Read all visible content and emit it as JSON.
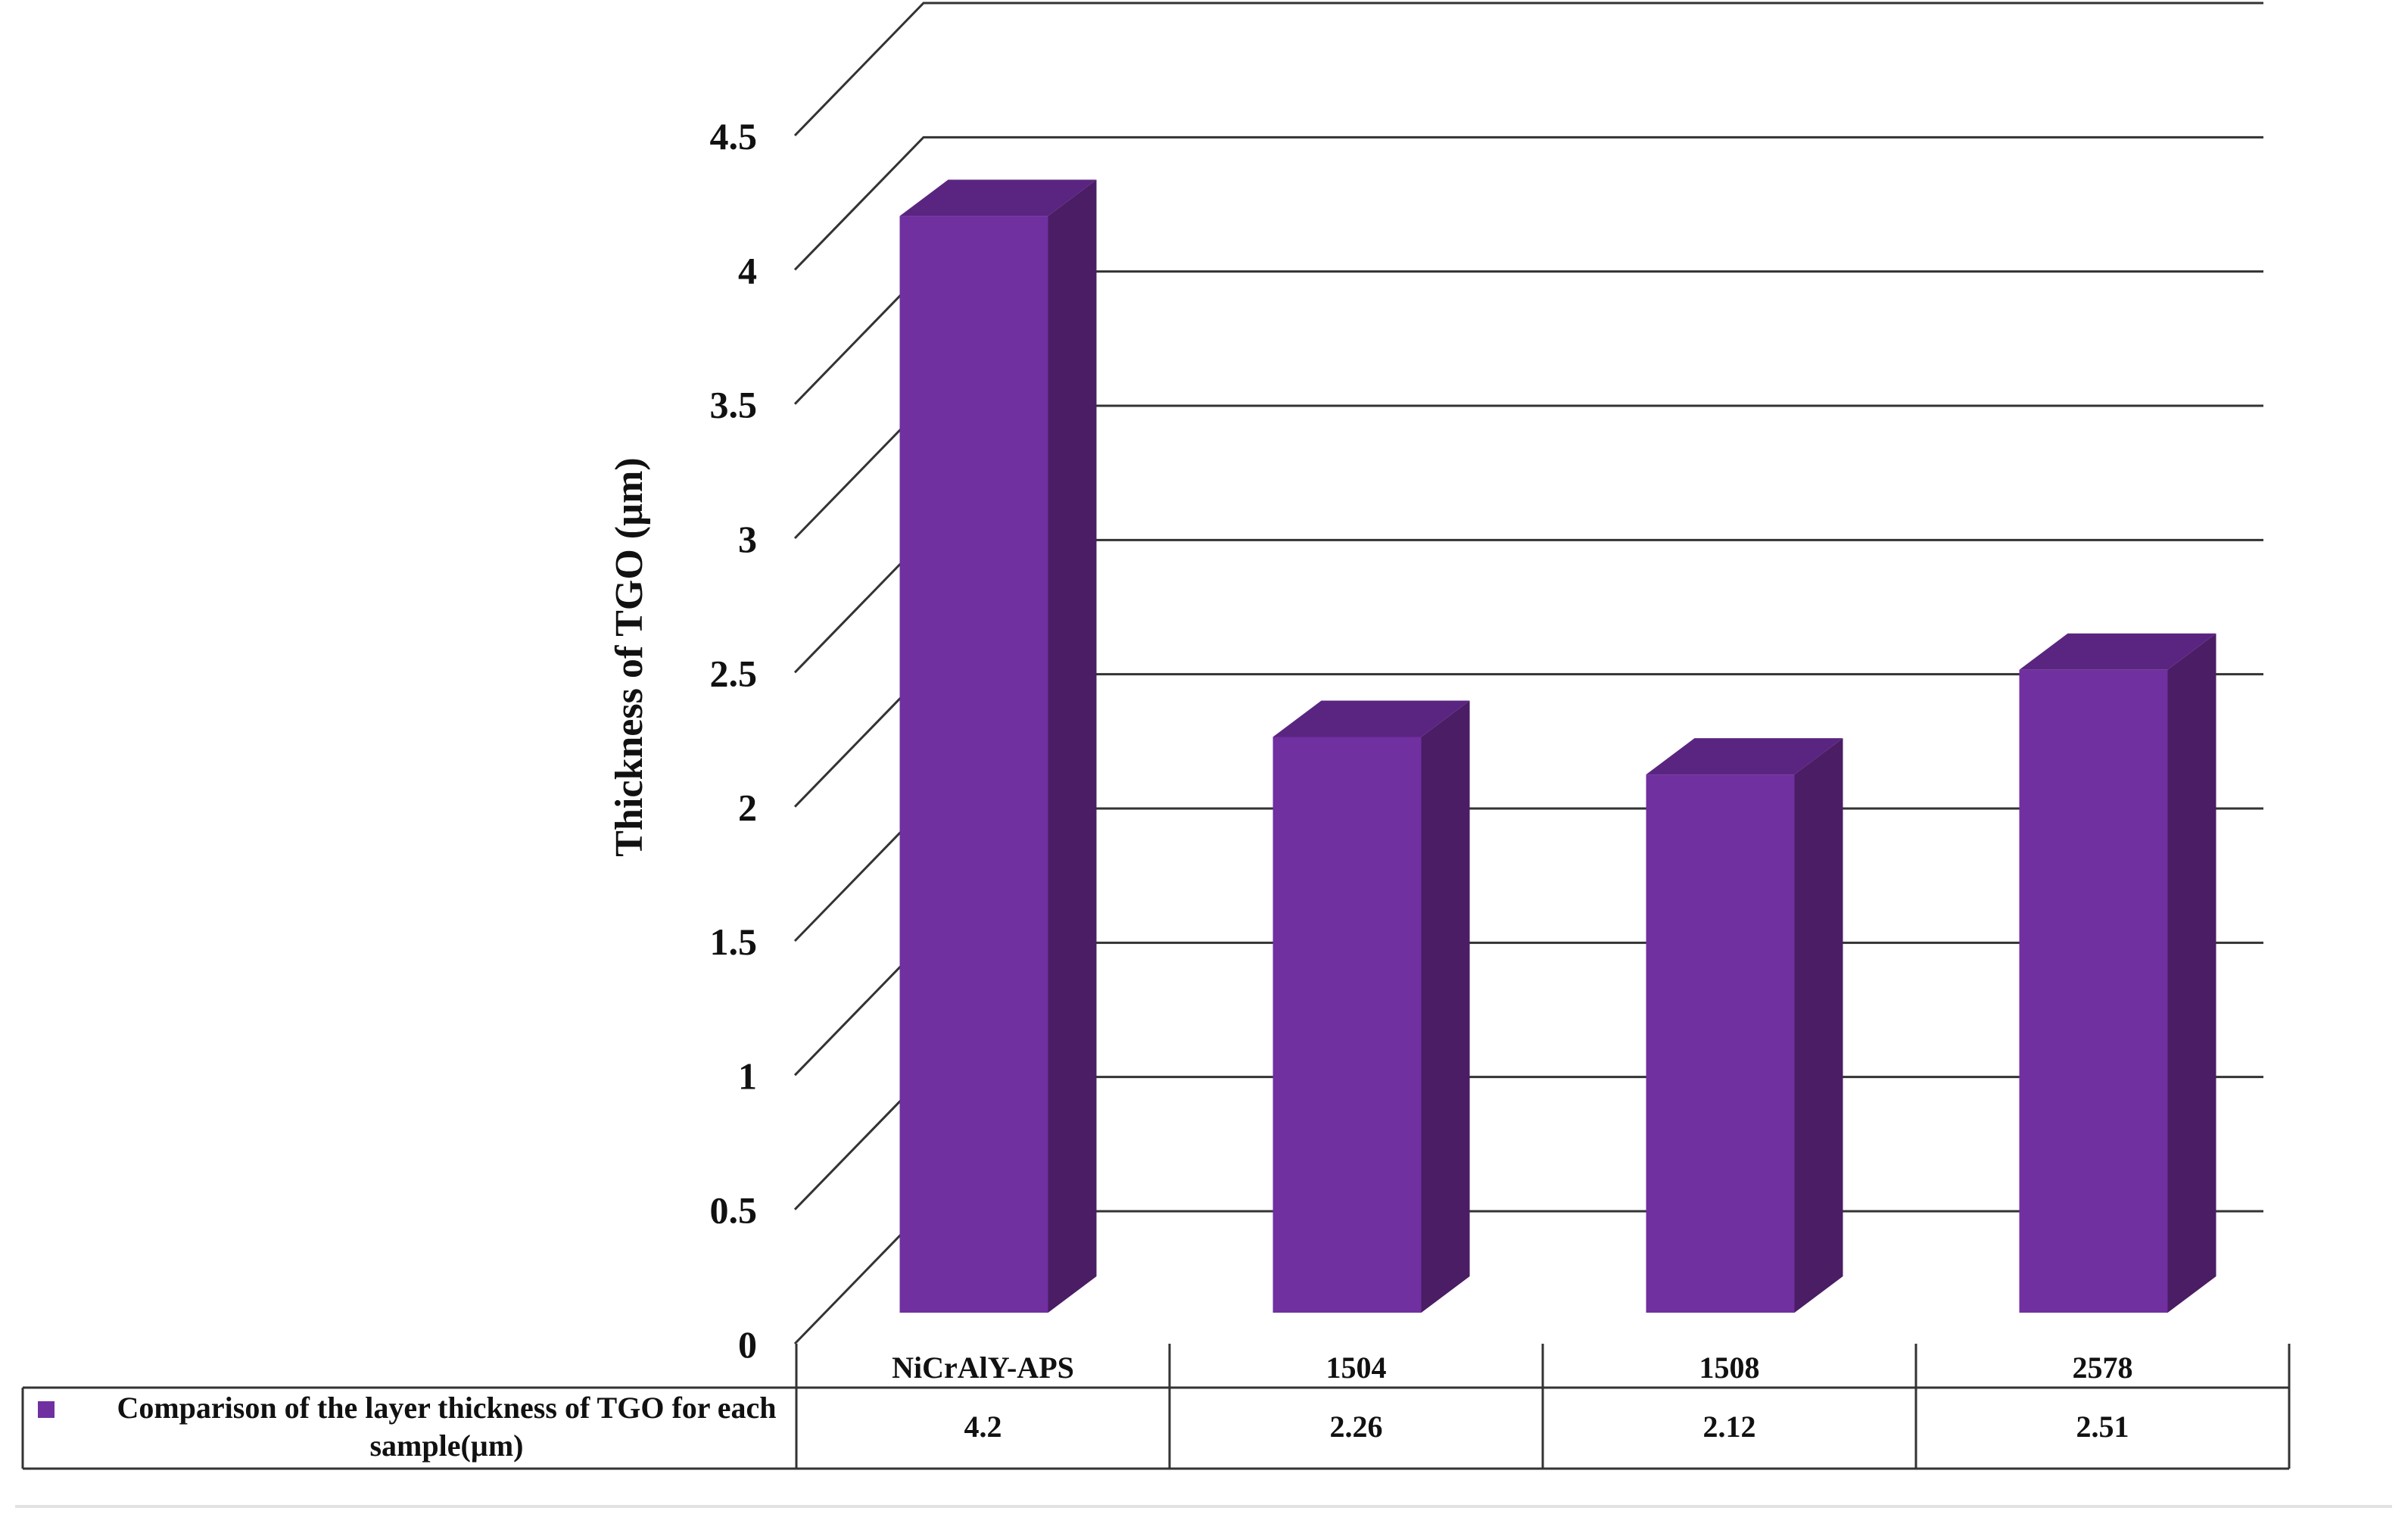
{
  "chart_data": {
    "type": "bar",
    "title": "",
    "ylabel": "Thickness of  TGO (µm)",
    "xlabel": "",
    "categories": [
      "NiCrAlY-APS",
      "1504",
      "1508",
      "2578"
    ],
    "series": [
      {
        "name": "Comparison of the layer thickness of TGO for each sample(µm)",
        "name_lines": [
          "Comparison of the layer thickness of TGO for each",
          "sample(µm)"
        ],
        "values": [
          4.2,
          2.26,
          2.12,
          2.51
        ],
        "value_labels": [
          "4.2",
          "2.26",
          "2.12",
          "2.51"
        ],
        "color": "#7030a0",
        "side_color": "#4a1d64",
        "top_color": "#5a2580"
      }
    ],
    "ylim": [
      0,
      4.5
    ],
    "yticks": [
      "0",
      "0.5",
      "1",
      "1.5",
      "2",
      "2.5",
      "3",
      "3.5",
      "4",
      "4.5"
    ],
    "grid": true,
    "legend": "data-table",
    "style": "3d-column-with-data-table"
  }
}
